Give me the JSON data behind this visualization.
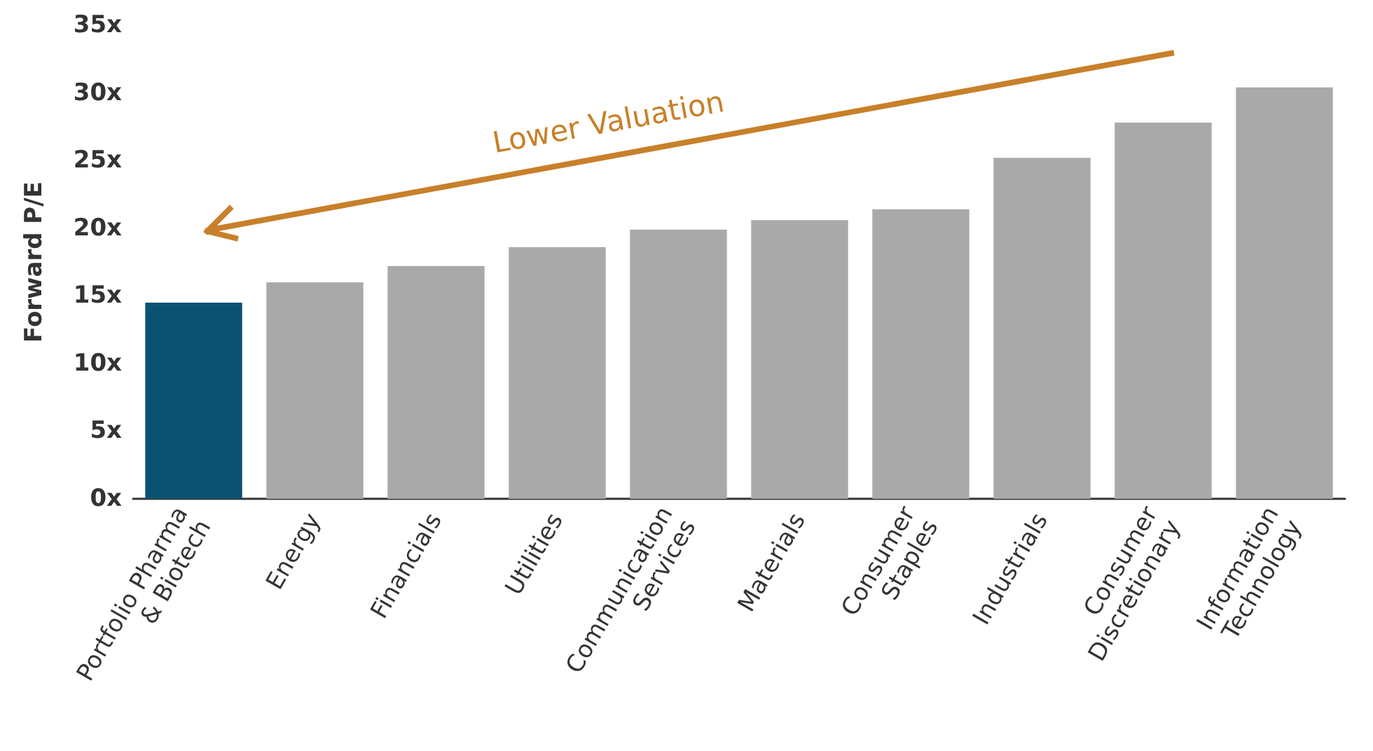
{
  "chart_data": {
    "type": "bar",
    "ylabel": "Forward P/E",
    "categories": [
      "Portfolio Pharma & Biotech",
      "Energy",
      "Financials",
      "Utilities",
      "Communication Services",
      "Materials",
      "Consumer Staples",
      "Industrials",
      "Consumer Discretionary",
      "Information Technology"
    ],
    "values": [
      14.5,
      16,
      17.2,
      18.6,
      19.9,
      20.6,
      21.4,
      25.2,
      27.8,
      30.4
    ],
    "colors": [
      "#0b5272",
      "#a9a9a9",
      "#a9a9a9",
      "#a9a9a9",
      "#a9a9a9",
      "#a9a9a9",
      "#a9a9a9",
      "#a9a9a9",
      "#a9a9a9",
      "#a9a9a9"
    ],
    "ylim": [
      0,
      35
    ],
    "yticks": [
      {
        "value": 0,
        "label": "0x"
      },
      {
        "value": 5,
        "label": "5x"
      },
      {
        "value": 10,
        "label": "10x"
      },
      {
        "value": 15,
        "label": "15x"
      },
      {
        "value": 20,
        "label": "20x"
      },
      {
        "value": 25,
        "label": "25x"
      },
      {
        "value": 30,
        "label": "30x"
      },
      {
        "value": 35,
        "label": "35x"
      }
    ],
    "annotations": [
      "Lower Valuation"
    ],
    "grid": false
  }
}
